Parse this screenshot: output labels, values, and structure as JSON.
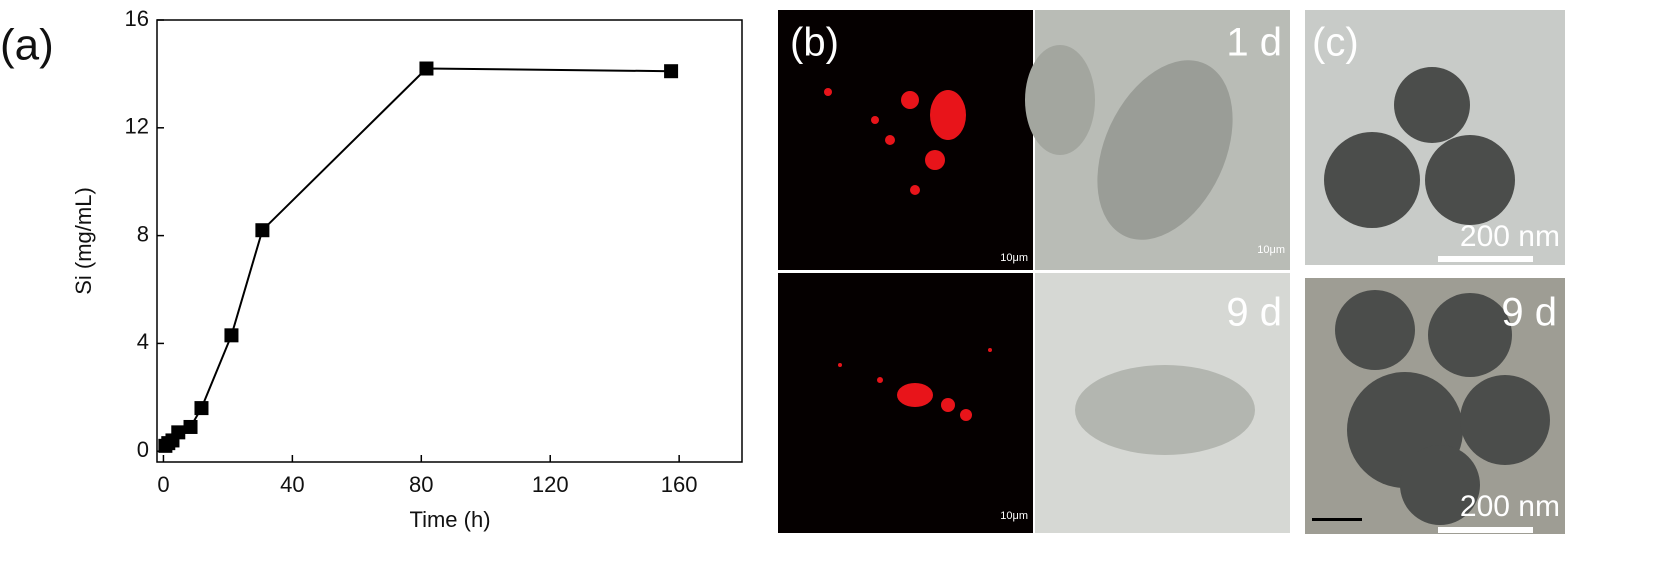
{
  "chart_data": {
    "type": "line",
    "panel_label": "(a)",
    "x_label": "Time (h)",
    "y_label": "Si (mg/mL)",
    "x": [
      0.6,
      1.5,
      2.8,
      4.6,
      8.4,
      11.8,
      21.1,
      30.7,
      81.6,
      157.5
    ],
    "series": [
      {
        "color": "#000000",
        "values": [
          0.2,
          0.3,
          0.4,
          0.7,
          0.9,
          1.6,
          4.3,
          8.2,
          14.2,
          14.1
        ]
      }
    ],
    "xlim": [
      -2,
      179.5
    ],
    "ylim": [
      -0.4,
      16
    ],
    "xticks": [
      0,
      40,
      80,
      120,
      160
    ],
    "yticks": [
      0,
      4,
      8,
      12,
      16
    ]
  },
  "panels": {
    "b": {
      "label": "(b)",
      "top_right_day": "1 d",
      "bottom_right_day": "9 d",
      "scale_top_left": "10μm",
      "scale_top_right": "10μm",
      "scale_bottom_left": "10μm"
    },
    "c": {
      "label": "(c)",
      "bottom_day": "9 d",
      "scale_top": "200 nm",
      "scale_bottom": "200 nm"
    }
  }
}
